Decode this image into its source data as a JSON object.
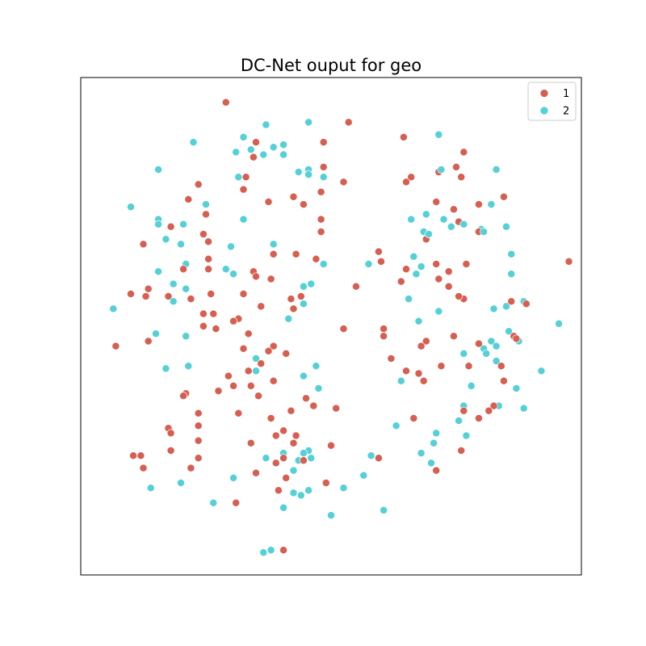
{
  "chart_data": {
    "type": "scatter",
    "title": "DC-Net ouput for geo",
    "xlabel": "",
    "ylabel": "",
    "xlim": [
      0,
      100
    ],
    "ylim": [
      0,
      100
    ],
    "ticks_visible": false,
    "grid": false,
    "legend_position": "top-right",
    "series": [
      {
        "name": "1",
        "color": "#d65f52",
        "points": [
          [
            29.0,
            95.0
          ],
          [
            53.5,
            91.0
          ],
          [
            64.5,
            88.0
          ],
          [
            35.0,
            87.0
          ],
          [
            48.5,
            87.0
          ],
          [
            76.5,
            85.0
          ],
          [
            34.5,
            84.0
          ],
          [
            48.5,
            82.0
          ],
          [
            75.0,
            82.0
          ],
          [
            71.5,
            81.0
          ],
          [
            66.0,
            80.0
          ],
          [
            76.0,
            80.0
          ],
          [
            33.0,
            80.0
          ],
          [
            65.0,
            79.0
          ],
          [
            52.5,
            79.0
          ],
          [
            23.5,
            78.5
          ],
          [
            32.5,
            77.5
          ],
          [
            42.5,
            76.0
          ],
          [
            48.0,
            77.0
          ],
          [
            84.5,
            76.0
          ],
          [
            21.5,
            75.5
          ],
          [
            37.5,
            75.0
          ],
          [
            44.5,
            74.5
          ],
          [
            71.0,
            75.0
          ],
          [
            79.5,
            74.5
          ],
          [
            74.5,
            73.5
          ],
          [
            25.0,
            72.5
          ],
          [
            48.0,
            71.5
          ],
          [
            75.5,
            71.0
          ],
          [
            18.0,
            70.0
          ],
          [
            48.0,
            69.0
          ],
          [
            24.5,
            68.5
          ],
          [
            79.5,
            69.0
          ],
          [
            25.5,
            67.0
          ],
          [
            69.0,
            67.5
          ],
          [
            12.5,
            66.5
          ],
          [
            38.5,
            64.5
          ],
          [
            43.0,
            64.5
          ],
          [
            59.5,
            65.0
          ],
          [
            25.5,
            63.5
          ],
          [
            47.0,
            63.5
          ],
          [
            60.0,
            63.0
          ],
          [
            71.0,
            62.5
          ],
          [
            77.0,
            62.5
          ],
          [
            97.5,
            63.0
          ],
          [
            20.5,
            61.5
          ],
          [
            25.5,
            61.5
          ],
          [
            65.0,
            61.5
          ],
          [
            73.5,
            61.0
          ],
          [
            34.5,
            61.0
          ],
          [
            35.0,
            60.0
          ],
          [
            38.0,
            59.5
          ],
          [
            71.5,
            59.5
          ],
          [
            64.0,
            59.0
          ],
          [
            73.5,
            58.0
          ],
          [
            13.5,
            57.5
          ],
          [
            10.0,
            56.5
          ],
          [
            32.5,
            56.5
          ],
          [
            55.0,
            58.0
          ],
          [
            17.5,
            56.0
          ],
          [
            13.0,
            56.0
          ],
          [
            44.0,
            56.0
          ],
          [
            22.0,
            55.5
          ],
          [
            42.0,
            55.5
          ],
          [
            26.0,
            56.5
          ],
          [
            76.5,
            55.5
          ],
          [
            42.5,
            53.5
          ],
          [
            75.5,
            56.0
          ],
          [
            86.0,
            55.0
          ],
          [
            36.0,
            54.0
          ],
          [
            24.5,
            52.5
          ],
          [
            26.5,
            52.5
          ],
          [
            89.0,
            54.5
          ],
          [
            31.5,
            51.5
          ],
          [
            30.5,
            51.0
          ],
          [
            24.5,
            50.0
          ],
          [
            27.0,
            49.5
          ],
          [
            52.5,
            49.5
          ],
          [
            60.5,
            49.5
          ],
          [
            86.5,
            48.0
          ],
          [
            33.5,
            48.5
          ],
          [
            74.5,
            48.0
          ],
          [
            60.5,
            48.0
          ],
          [
            69.0,
            47.0
          ],
          [
            13.5,
            47.0
          ],
          [
            7.0,
            46.0
          ],
          [
            38.5,
            46.0
          ],
          [
            68.0,
            46.0
          ],
          [
            87.0,
            47.5
          ],
          [
            79.5,
            46.5
          ],
          [
            37.5,
            45.0
          ],
          [
            41.0,
            44.5
          ],
          [
            32.5,
            45.5
          ],
          [
            62.0,
            43.5
          ],
          [
            84.0,
            42.0
          ],
          [
            72.0,
            42.0
          ],
          [
            36.0,
            42.5
          ],
          [
            77.5,
            42.0
          ],
          [
            33.5,
            41.0
          ],
          [
            65.0,
            41.0
          ],
          [
            67.5,
            40.5
          ],
          [
            68.5,
            39.0
          ],
          [
            29.5,
            40.0
          ],
          [
            38.5,
            39.0
          ],
          [
            84.5,
            39.0
          ],
          [
            34.0,
            38.0
          ],
          [
            30.5,
            38.0
          ],
          [
            27.5,
            37.0
          ],
          [
            21.0,
            36.5
          ],
          [
            35.5,
            36.0
          ],
          [
            20.5,
            36.0
          ],
          [
            45.0,
            35.5
          ],
          [
            82.5,
            34.0
          ],
          [
            46.5,
            34.0
          ],
          [
            42.0,
            33.0
          ],
          [
            51.0,
            33.5
          ],
          [
            81.5,
            33.0
          ],
          [
            76.5,
            33.0
          ],
          [
            23.5,
            32.5
          ],
          [
            31.5,
            32.5
          ],
          [
            38.0,
            31.5
          ],
          [
            79.5,
            31.5
          ],
          [
            66.5,
            31.5
          ],
          [
            17.5,
            29.5
          ],
          [
            23.5,
            30.0
          ],
          [
            40.5,
            29.0
          ],
          [
            39.0,
            28.0
          ],
          [
            43.0,
            28.0
          ],
          [
            18.0,
            28.5
          ],
          [
            23.5,
            27.0
          ],
          [
            34.0,
            26.5
          ],
          [
            42.5,
            26.5
          ],
          [
            50.0,
            26.0
          ],
          [
            18.0,
            25.0
          ],
          [
            76.0,
            25.0
          ],
          [
            10.5,
            24.0
          ],
          [
            40.5,
            23.5
          ],
          [
            12.0,
            24.0
          ],
          [
            23.5,
            23.5
          ],
          [
            12.5,
            21.5
          ],
          [
            59.5,
            23.5
          ],
          [
            44.5,
            23.0
          ],
          [
            39.0,
            22.5
          ],
          [
            22.0,
            21.5
          ],
          [
            35.0,
            20.5
          ],
          [
            71.0,
            21.0
          ],
          [
            41.0,
            19.5
          ],
          [
            49.0,
            18.5
          ],
          [
            39.5,
            17.0
          ],
          [
            31.0,
            14.5
          ],
          [
            40.5,
            5.0
          ]
        ]
      },
      {
        "name": "2",
        "color": "#55d0d7",
        "points": [
          [
            37.0,
            90.5
          ],
          [
            45.5,
            91.0
          ],
          [
            71.5,
            88.5
          ],
          [
            32.5,
            88.0
          ],
          [
            22.5,
            87.0
          ],
          [
            38.5,
            86.0
          ],
          [
            40.5,
            86.5
          ],
          [
            31.0,
            85.0
          ],
          [
            34.0,
            85.5
          ],
          [
            36.5,
            84.5
          ],
          [
            40.5,
            84.5
          ],
          [
            15.5,
            81.5
          ],
          [
            45.5,
            81.5
          ],
          [
            43.5,
            81.0
          ],
          [
            72.0,
            81.5
          ],
          [
            83.0,
            81.5
          ],
          [
            45.5,
            80.5
          ],
          [
            48.5,
            80.0
          ],
          [
            31.5,
            80.0
          ],
          [
            25.0,
            74.5
          ],
          [
            10.0,
            74.0
          ],
          [
            82.0,
            74.5
          ],
          [
            69.0,
            72.5
          ],
          [
            15.5,
            71.5
          ],
          [
            72.5,
            71.5
          ],
          [
            20.5,
            70.5
          ],
          [
            32.5,
            71.5
          ],
          [
            15.5,
            70.5
          ],
          [
            66.0,
            71.5
          ],
          [
            76.5,
            70.5
          ],
          [
            74.0,
            70.0
          ],
          [
            80.0,
            69.5
          ],
          [
            85.0,
            70.0
          ],
          [
            80.5,
            69.0
          ],
          [
            68.5,
            69.0
          ],
          [
            69.5,
            68.5
          ],
          [
            17.0,
            67.5
          ],
          [
            20.0,
            66.5
          ],
          [
            30.0,
            66.0
          ],
          [
            38.5,
            66.5
          ],
          [
            86.0,
            64.5
          ],
          [
            66.5,
            64.0
          ],
          [
            21.0,
            62.5
          ],
          [
            48.5,
            62.5
          ],
          [
            57.5,
            62.5
          ],
          [
            68.0,
            62.0
          ],
          [
            15.5,
            61.0
          ],
          [
            29.0,
            61.5
          ],
          [
            30.5,
            60.5
          ],
          [
            67.0,
            60.5
          ],
          [
            86.0,
            60.5
          ],
          [
            18.5,
            58.5
          ],
          [
            21.0,
            57.5
          ],
          [
            44.5,
            58.0
          ],
          [
            46.0,
            58.5
          ],
          [
            65.5,
            55.5
          ],
          [
            88.5,
            55.0
          ],
          [
            6.5,
            53.5
          ],
          [
            44.5,
            54.5
          ],
          [
            18.5,
            55.0
          ],
          [
            71.5,
            53.0
          ],
          [
            82.5,
            53.5
          ],
          [
            85.0,
            54.0
          ],
          [
            67.5,
            51.0
          ],
          [
            41.5,
            51.5
          ],
          [
            15.0,
            48.5
          ],
          [
            21.0,
            48.0
          ],
          [
            85.5,
            49.0
          ],
          [
            95.5,
            50.5
          ],
          [
            82.0,
            47.0
          ],
          [
            41.0,
            44.5
          ],
          [
            35.0,
            43.5
          ],
          [
            80.5,
            45.5
          ],
          [
            83.0,
            46.0
          ],
          [
            87.5,
            47.0
          ],
          [
            76.5,
            44.5
          ],
          [
            83.0,
            43.0
          ],
          [
            81.0,
            44.5
          ],
          [
            47.0,
            42.0
          ],
          [
            21.5,
            42.0
          ],
          [
            17.0,
            41.5
          ],
          [
            35.0,
            41.0
          ],
          [
            44.5,
            40.0
          ],
          [
            64.0,
            39.0
          ],
          [
            78.0,
            38.0
          ],
          [
            47.5,
            37.5
          ],
          [
            87.0,
            37.5
          ],
          [
            92.0,
            41.0
          ],
          [
            76.5,
            34.0
          ],
          [
            83.5,
            34.0
          ],
          [
            88.5,
            33.5
          ],
          [
            75.5,
            31.0
          ],
          [
            63.0,
            30.0
          ],
          [
            71.0,
            28.5
          ],
          [
            77.0,
            28.0
          ],
          [
            70.5,
            26.5
          ],
          [
            45.5,
            25.0
          ],
          [
            58.0,
            24.0
          ],
          [
            40.5,
            24.5
          ],
          [
            44.5,
            24.5
          ],
          [
            46.0,
            23.5
          ],
          [
            43.5,
            23.0
          ],
          [
            37.0,
            23.5
          ],
          [
            68.0,
            24.5
          ],
          [
            56.5,
            20.0
          ],
          [
            30.5,
            19.5
          ],
          [
            42.5,
            21.0
          ],
          [
            70.0,
            22.5
          ],
          [
            20.0,
            18.5
          ],
          [
            44.0,
            16.0
          ],
          [
            26.5,
            14.5
          ],
          [
            42.5,
            16.5
          ],
          [
            45.5,
            17.0
          ],
          [
            52.5,
            17.5
          ],
          [
            40.5,
            13.5
          ],
          [
            14.0,
            17.5
          ],
          [
            60.5,
            13.0
          ],
          [
            50.0,
            12.0
          ],
          [
            38.0,
            5.0
          ],
          [
            36.5,
            4.5
          ]
        ]
      }
    ]
  }
}
